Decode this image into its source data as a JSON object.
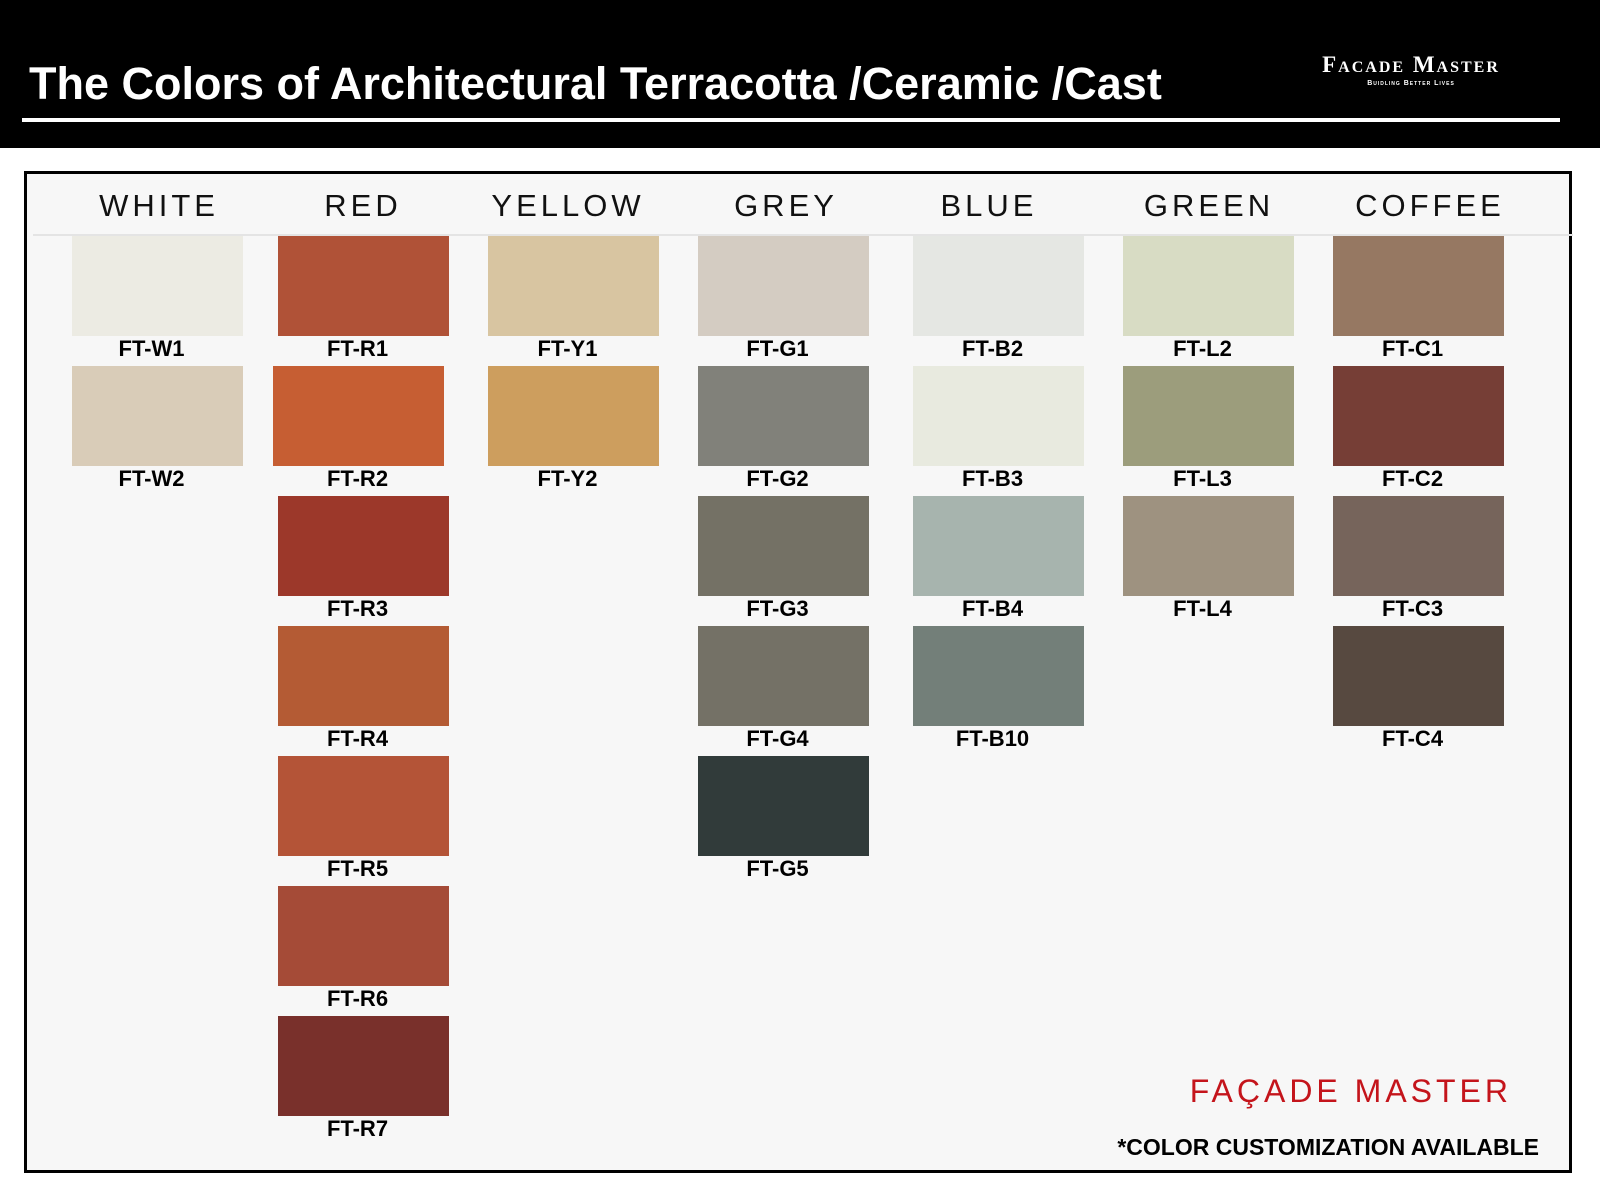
{
  "header": {
    "title": "The Colors of Architectural Terracotta /Ceramic /Cast",
    "brand_name": "Facade Master",
    "brand_tagline": "Buidling Better Lives"
  },
  "columns": [
    {
      "heading": "WHITE",
      "swatches": [
        {
          "code": "FT-W1",
          "color": "#ecebe3"
        },
        {
          "code": "FT-W2",
          "color": "#d9ccb8"
        }
      ]
    },
    {
      "heading": "RED",
      "swatches": [
        {
          "code": "FT-R1",
          "color": "#b05237"
        },
        {
          "code": "FT-R2",
          "color": "#c65e33"
        },
        {
          "code": "FT-R3",
          "color": "#9c382a"
        },
        {
          "code": "FT-R4",
          "color": "#b45b34"
        },
        {
          "code": "FT-R5",
          "color": "#b45437"
        },
        {
          "code": "FT-R6",
          "color": "#a54b37"
        },
        {
          "code": "FT-R7",
          "color": "#79302b"
        }
      ]
    },
    {
      "heading": "YELLOW",
      "swatches": [
        {
          "code": "FT-Y1",
          "color": "#d8c5a1"
        },
        {
          "code": "FT-Y2",
          "color": "#cd9e5e"
        }
      ]
    },
    {
      "heading": "GREY",
      "swatches": [
        {
          "code": "FT-G1",
          "color": "#d4ccc2"
        },
        {
          "code": "FT-G2",
          "color": "#81817a"
        },
        {
          "code": "FT-G3",
          "color": "#747165"
        },
        {
          "code": "FT-G4",
          "color": "#747166"
        },
        {
          "code": "FT-G5",
          "color": "#313b3a"
        }
      ]
    },
    {
      "heading": "BLUE",
      "swatches": [
        {
          "code": "FT-B2",
          "color": "#e5e7e3"
        },
        {
          "code": "FT-B3",
          "color": "#e8eadf"
        },
        {
          "code": "FT-B4",
          "color": "#a7b4ae"
        },
        {
          "code": "FT-B10",
          "color": "#737f79"
        }
      ]
    },
    {
      "heading": "GREEN",
      "swatches": [
        {
          "code": "FT-L2",
          "color": "#d8dcc4"
        },
        {
          "code": "FT-L3",
          "color": "#9c9d7c"
        },
        {
          "code": "FT-L4",
          "color": "#9e9280"
        }
      ]
    },
    {
      "heading": "COFFEE",
      "swatches": [
        {
          "code": "FT-C1",
          "color": "#967862"
        },
        {
          "code": "FT-C2",
          "color": "#763e36"
        },
        {
          "code": "FT-C3",
          "color": "#76645b"
        },
        {
          "code": "FT-C4",
          "color": "#574940"
        }
      ]
    }
  ],
  "footer": {
    "brand": "FAÇADE MASTER",
    "note": "*COLOR CUSTOMIZATION AVAILABLE"
  }
}
